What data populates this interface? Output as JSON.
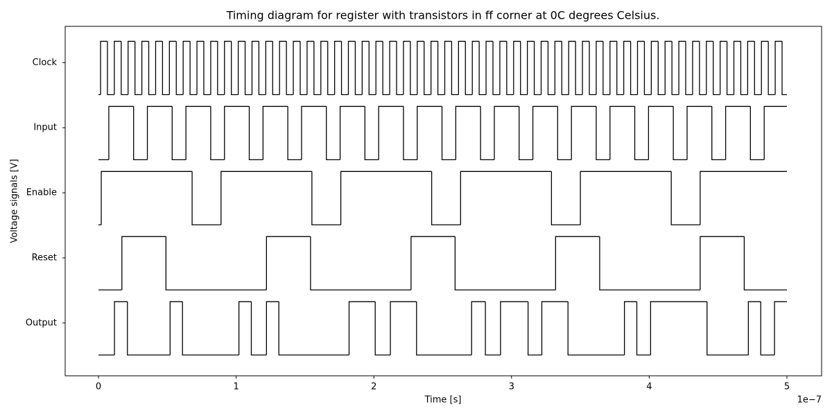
{
  "chart_data": {
    "type": "step",
    "title": "Timing diagram for register with transistors in ff corner at 0C degrees Celsius.",
    "x_label": "Time [s]",
    "y_label": "Voltage signals [V]",
    "x_offset_label": "1e−7",
    "xlim": [
      -2.42e-08,
      5.252e-07
    ],
    "xticks": [
      {
        "value": 0,
        "label": "0"
      },
      {
        "value": 1e-07,
        "label": "1"
      },
      {
        "value": 2e-07,
        "label": "2"
      },
      {
        "value": 3e-07,
        "label": "3"
      },
      {
        "value": 4e-07,
        "label": "4"
      },
      {
        "value": 5e-07,
        "label": "5"
      }
    ],
    "ylim": [
      -0.39,
      6.16
    ],
    "yticks": [
      {
        "value": 0.6,
        "label": "Output"
      },
      {
        "value": 1.82,
        "label": "Reset"
      },
      {
        "value": 3.04,
        "label": "Enable"
      },
      {
        "value": 4.26,
        "label": "Input"
      },
      {
        "value": 5.48,
        "label": "Clock"
      }
    ],
    "series": [
      {
        "color": "#000000",
        "x": [
          0,
          1.5e-09,
          6.5e-09,
          1.15e-08,
          1.65e-08,
          2.15e-08,
          2.65e-08,
          3.15e-08,
          3.65e-08,
          4.15e-08,
          4.65e-08,
          5.15e-08,
          5.65e-08,
          6.15e-08,
          6.65e-08,
          7.15e-08,
          7.65e-08,
          8.15e-08,
          8.65e-08,
          9.15e-08,
          9.65e-08,
          1.015e-07,
          1.065e-07,
          1.115e-07,
          1.165e-07,
          1.215e-07,
          1.265e-07,
          1.315e-07,
          1.365e-07,
          1.415e-07,
          1.465e-07,
          1.515e-07,
          1.565e-07,
          1.615e-07,
          1.665e-07,
          1.715e-07,
          1.765e-07,
          1.815e-07,
          1.865e-07,
          1.915e-07,
          1.965e-07,
          2.015e-07,
          2.065e-07,
          2.115e-07,
          2.165e-07,
          2.215e-07,
          2.265e-07,
          2.315e-07,
          2.365e-07,
          2.415e-07,
          2.465e-07,
          2.515e-07,
          2.565e-07,
          2.615e-07,
          2.665e-07,
          2.715e-07,
          2.765e-07,
          2.815e-07,
          2.865e-07,
          2.915e-07,
          2.965e-07,
          3.015e-07,
          3.065e-07,
          3.115e-07,
          3.165e-07,
          3.215e-07,
          3.265e-07,
          3.315e-07,
          3.365e-07,
          3.415e-07,
          3.465e-07,
          3.515e-07,
          3.565e-07,
          3.615e-07,
          3.665e-07,
          3.715e-07,
          3.765e-07,
          3.815e-07,
          3.865e-07,
          3.915e-07,
          3.965e-07,
          4.015e-07,
          4.065e-07,
          4.115e-07,
          4.165e-07,
          4.215e-07,
          4.265e-07,
          4.315e-07,
          4.365e-07,
          4.415e-07,
          4.465e-07,
          4.515e-07,
          4.565e-07,
          4.615e-07,
          4.665e-07,
          4.715e-07,
          4.765e-07,
          4.815e-07,
          4.865e-07,
          4.915e-07,
          4.965e-07,
          5e-07
        ],
        "values": [
          4.88,
          5.88,
          4.88,
          5.88,
          4.88,
          5.88,
          4.88,
          5.88,
          4.88,
          5.88,
          4.88,
          5.88,
          4.88,
          5.88,
          4.88,
          5.88,
          4.88,
          5.88,
          4.88,
          5.88,
          4.88,
          5.88,
          4.88,
          5.88,
          4.88,
          5.88,
          4.88,
          5.88,
          4.88,
          5.88,
          4.88,
          5.88,
          4.88,
          5.88,
          4.88,
          5.88,
          4.88,
          5.88,
          4.88,
          5.88,
          4.88,
          5.88,
          4.88,
          5.88,
          4.88,
          5.88,
          4.88,
          5.88,
          4.88,
          5.88,
          4.88,
          5.88,
          4.88,
          5.88,
          4.88,
          5.88,
          4.88,
          5.88,
          4.88,
          5.88,
          4.88,
          5.88,
          4.88,
          5.88,
          4.88,
          5.88,
          4.88,
          5.88,
          4.88,
          5.88,
          4.88,
          5.88,
          4.88,
          5.88,
          4.88,
          5.88,
          4.88,
          5.88,
          4.88,
          5.88,
          4.88,
          5.88,
          4.88,
          5.88,
          4.88,
          5.88,
          4.88,
          5.88,
          4.88,
          5.88,
          4.88,
          5.88,
          4.88,
          5.88,
          4.88,
          5.88,
          4.88,
          5.88,
          4.88,
          5.88,
          4.88,
          4.88
        ]
      },
      {
        "color": "#000000",
        "x": [
          0,
          7.5e-09,
          2.55e-08,
          3.55e-08,
          5.35e-08,
          6.35e-08,
          8.15e-08,
          9.15e-08,
          1.095e-07,
          1.195e-07,
          1.375e-07,
          1.475e-07,
          1.655e-07,
          1.755e-07,
          1.935e-07,
          2.035e-07,
          2.215e-07,
          2.315e-07,
          2.495e-07,
          2.595e-07,
          2.775e-07,
          2.875e-07,
          3.055e-07,
          3.155e-07,
          3.335e-07,
          3.435e-07,
          3.615e-07,
          3.715e-07,
          3.895e-07,
          3.995e-07,
          4.175e-07,
          4.275e-07,
          4.455e-07,
          4.555e-07,
          4.735e-07,
          4.835e-07,
          5e-07
        ],
        "values": [
          3.66,
          4.66,
          3.66,
          4.66,
          3.66,
          4.66,
          3.66,
          4.66,
          3.66,
          4.66,
          3.66,
          4.66,
          3.66,
          4.66,
          3.66,
          4.66,
          3.66,
          4.66,
          3.66,
          4.66,
          3.66,
          4.66,
          3.66,
          4.66,
          3.66,
          4.66,
          3.66,
          4.66,
          3.66,
          4.66,
          3.66,
          4.66,
          3.66,
          4.66,
          3.66,
          4.66,
          4.66
        ]
      },
      {
        "color": "#000000",
        "x": [
          0,
          2e-09,
          6.8e-08,
          8.9e-08,
          1.55e-07,
          1.76e-07,
          2.42e-07,
          2.63e-07,
          3.29e-07,
          3.5e-07,
          4.16e-07,
          4.37e-07,
          5e-07
        ],
        "values": [
          2.44,
          3.44,
          2.44,
          3.44,
          2.44,
          3.44,
          2.44,
          3.44,
          2.44,
          3.44,
          2.44,
          3.44,
          3.44
        ]
      },
      {
        "color": "#000000",
        "x": [
          0,
          1.7e-08,
          4.9e-08,
          1.22e-07,
          1.54e-07,
          2.27e-07,
          2.59e-07,
          3.32e-07,
          3.64e-07,
          4.37e-07,
          4.69e-07,
          5e-07
        ],
        "values": [
          1.22,
          2.22,
          1.22,
          2.22,
          1.22,
          2.22,
          1.22,
          2.22,
          1.22,
          2.22,
          1.22,
          1.22
        ]
      },
      {
        "color": "#000000",
        "x": [
          0,
          1.16e-08,
          2.1e-08,
          5.2e-08,
          6.1e-08,
          1.02e-07,
          1.11e-07,
          1.22e-07,
          1.31e-07,
          1.82e-07,
          2.01e-07,
          2.12e-07,
          2.31e-07,
          2.71e-07,
          2.81e-07,
          2.92e-07,
          3.12e-07,
          3.22e-07,
          3.41e-07,
          3.82e-07,
          3.91e-07,
          4.01e-07,
          4.42e-07,
          4.72e-07,
          4.81e-07,
          4.91e-07,
          5e-07
        ],
        "values": [
          0,
          1,
          0,
          1,
          0,
          1,
          0,
          1,
          0,
          1,
          0,
          1,
          0,
          1,
          0,
          1,
          0,
          1,
          0,
          1,
          0,
          1,
          0,
          1,
          0,
          1,
          1
        ]
      }
    ]
  }
}
